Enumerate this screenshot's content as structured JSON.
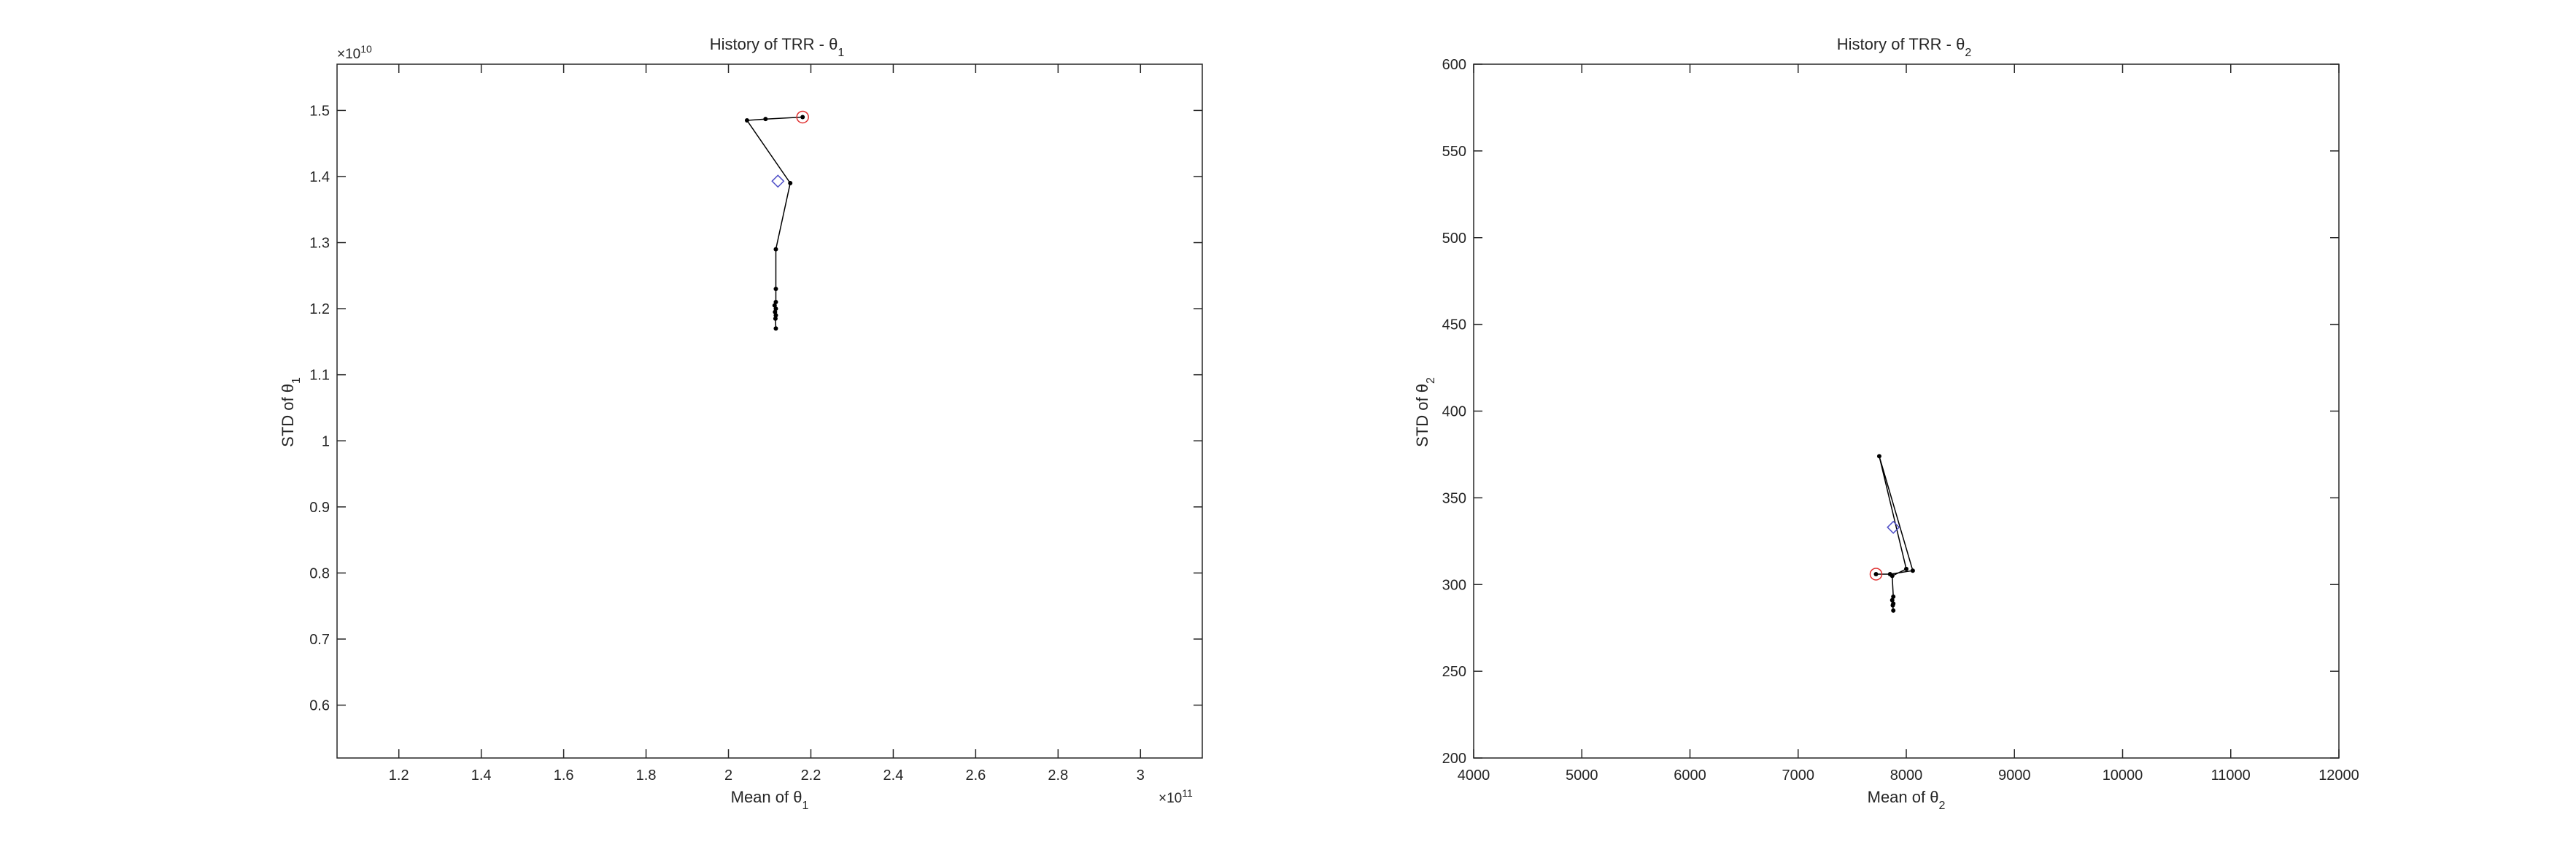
{
  "chart_data": [
    {
      "type": "line",
      "title": "History of TRR - θ",
      "title_subscript": "1",
      "xlabel": "Mean of θ",
      "xlabel_subscript": "1",
      "ylabel": "STD of θ",
      "ylabel_subscript": "1",
      "x_exponent_label": "×10",
      "x_exponent_power": "11",
      "y_exponent_label": "×10",
      "y_exponent_power": "10",
      "xlim": [
        1.05,
        3.15
      ],
      "ylim": [
        0.52,
        1.57
      ],
      "xticks": [
        1.2,
        1.4,
        1.6,
        1.8,
        2.0,
        2.2,
        2.4,
        2.6,
        2.8,
        3.0
      ],
      "xtick_labels": [
        "1.2",
        "1.4",
        "1.6",
        "1.8",
        "2",
        "2.2",
        "2.4",
        "2.6",
        "2.8",
        "3"
      ],
      "yticks": [
        0.6,
        0.7,
        0.8,
        0.9,
        1.0,
        1.1,
        1.2,
        1.3,
        1.4,
        1.5
      ],
      "ytick_labels": [
        "0.6",
        "0.7",
        "0.8",
        "0.9",
        "1",
        "1.1",
        "1.2",
        "1.3",
        "1.4",
        "1.5"
      ],
      "grid": false,
      "series": [
        {
          "x": [
            2.18,
            2.09,
            2.045,
            2.15,
            2.115,
            2.115,
            2.115,
            2.112,
            2.115,
            2.113,
            2.115,
            2.114,
            2.115
          ],
          "y": [
            1.49,
            1.487,
            1.485,
            1.39,
            1.29,
            1.23,
            1.21,
            1.205,
            1.2,
            1.195,
            1.19,
            1.185,
            1.17
          ]
        }
      ],
      "start_marker": {
        "x": 2.18,
        "y": 1.49,
        "color": "#e03030"
      },
      "mean_marker": {
        "x": 2.12,
        "y": 1.393,
        "color": "#5050c8"
      }
    },
    {
      "type": "line",
      "title": "History of TRR - θ",
      "title_subscript": "2",
      "xlabel": "Mean of θ",
      "xlabel_subscript": "2",
      "ylabel": "STD of θ",
      "ylabel_subscript": "2",
      "xlim": [
        4000,
        12000
      ],
      "ylim": [
        200,
        600
      ],
      "xticks": [
        4000,
        5000,
        6000,
        7000,
        8000,
        9000,
        10000,
        11000,
        12000
      ],
      "xtick_labels": [
        "4000",
        "5000",
        "6000",
        "7000",
        "8000",
        "9000",
        "10000",
        "11000",
        "12000"
      ],
      "yticks": [
        200,
        250,
        300,
        350,
        400,
        450,
        500,
        550,
        600
      ],
      "ytick_labels": [
        "200",
        "250",
        "300",
        "350",
        "400",
        "450",
        "500",
        "550",
        "600"
      ],
      "grid": false,
      "series": [
        {
          "x": [
            7720,
            7850,
            8060,
            7750,
            8000,
            7870,
            7880,
            7870,
            7880,
            7875,
            7880
          ],
          "y": [
            306,
            306,
            308,
            374,
            309,
            305,
            293,
            291,
            289,
            288,
            285
          ]
        }
      ],
      "start_marker": {
        "x": 7720,
        "y": 306,
        "color": "#e03030"
      },
      "mean_marker": {
        "x": 7880,
        "y": 333,
        "color": "#5050c8"
      }
    }
  ]
}
